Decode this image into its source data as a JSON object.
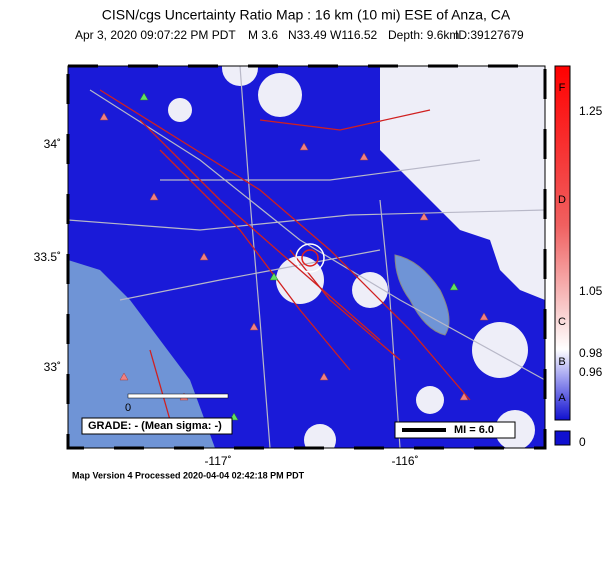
{
  "header": {
    "title": "CISN/cgs Uncertainty Ratio Map : 16 km (10 mi) ESE of Anza, CA",
    "date": "Apr  3, 2020 09:07:22 PM PDT",
    "magnitude": "M 3.6",
    "location": "N33.49 W116.52",
    "depth": "Depth: 9.6km",
    "id": "ID:39127679"
  },
  "map": {
    "lat_labels": [
      "34˚",
      "33.5˚",
      "33˚"
    ],
    "lon_labels": [
      "-117˚",
      "-116˚"
    ],
    "scale_zero": "0",
    "grade": "GRADE: - (Mean sigma: -)",
    "mi_legend": "MI = 6.0"
  },
  "colorbar": {
    "grades": [
      "F",
      "D",
      "C",
      "B",
      "A"
    ],
    "ticks": [
      "1.25",
      "1.05",
      "0.98",
      "0.96",
      "0"
    ]
  },
  "footer": "Map Version 4 Processed 2020-04-04 02:42:18 PM PDT"
}
